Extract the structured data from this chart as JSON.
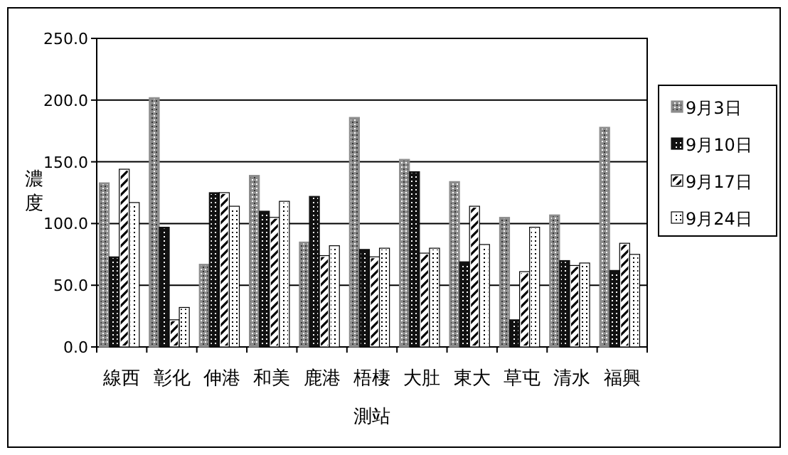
{
  "chart_data": {
    "type": "bar",
    "xlabel": "測站",
    "ylabel": "濃度",
    "categories": [
      "線西",
      "彰化",
      "伸港",
      "和美",
      "鹿港",
      "梧棲",
      "大肚",
      "東大",
      "草屯",
      "清水",
      "福興"
    ],
    "series": [
      {
        "name": "9月3日",
        "color": "#8c8c8c",
        "values": [
          133,
          202,
          67,
          139,
          85,
          186,
          152,
          134,
          105,
          107,
          178
        ]
      },
      {
        "name": "9月10日",
        "color": "#111111",
        "values": [
          73,
          97,
          125,
          110,
          122,
          79,
          142,
          69,
          22,
          70,
          62
        ]
      },
      {
        "name": "9月17日",
        "color": "#ffffff",
        "values": [
          144,
          22,
          125,
          105,
          74,
          73,
          76,
          114,
          61,
          66,
          84
        ]
      },
      {
        "name": "9月24日",
        "color": "#ffffff",
        "values": [
          117,
          32,
          114,
          118,
          82,
          80,
          80,
          83,
          97,
          68,
          75
        ]
      }
    ],
    "ylim": [
      0,
      250
    ],
    "yticks": [
      {
        "value": 0,
        "label": "0.0"
      },
      {
        "value": 50,
        "label": "50.0"
      },
      {
        "value": 100,
        "label": "100.0"
      },
      {
        "value": 150,
        "label": "150.0"
      },
      {
        "value": 200,
        "label": "200.0"
      },
      {
        "value": 250,
        "label": "250.0"
      }
    ],
    "grid": "y",
    "legend": "right"
  }
}
